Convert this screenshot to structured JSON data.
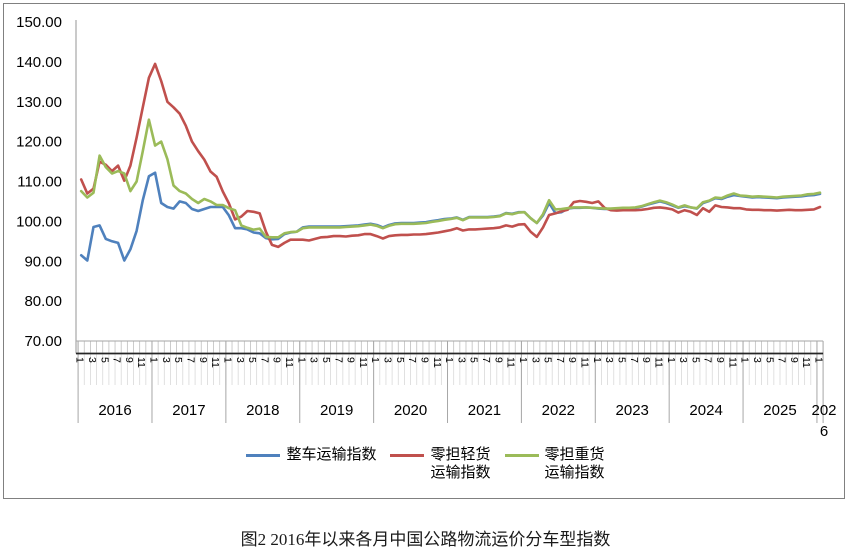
{
  "caption": "图2 2016年以来各月中国公路物流运价分车型指数",
  "legend": {
    "items": [
      {
        "id": "ftl",
        "lines": [
          "整车运输指数"
        ],
        "color": "#4F81BD"
      },
      {
        "id": "ltl-light",
        "lines": [
          "零担轻货",
          "运输指数"
        ],
        "color": "#C0504D"
      },
      {
        "id": "ltl-heavy",
        "lines": [
          "零担重货",
          "运输指数"
        ],
        "color": "#9BBB59"
      }
    ]
  },
  "chart_data": {
    "type": "line",
    "title": "",
    "xlabel": "",
    "ylabel": "",
    "ylim": [
      70,
      150
    ],
    "y_tick_step": 10,
    "grid": false,
    "legend_position": "bottom",
    "y_ticks": [
      "150.00",
      "140.00",
      "130.00",
      "120.00",
      "110.00",
      "100.00",
      "90.00",
      "80.00",
      "70.00"
    ],
    "x_years": [
      "2016",
      "2017",
      "2018",
      "2019",
      "2020",
      "2021",
      "2022",
      "2023",
      "2024",
      "2025",
      "2026"
    ],
    "x_month_ticks": [
      "1",
      "3",
      "5",
      "7",
      "9",
      "11"
    ],
    "x_start": "2016-01",
    "x_end": "2026-01",
    "series": [
      {
        "name": "整车运输指数",
        "color": "#4F81BD",
        "values": [
          91.5,
          90.2,
          98.6,
          99.0,
          95.6,
          95.0,
          94.6,
          90.2,
          93.0,
          97.6,
          105.2,
          111.3,
          112.2,
          104.6,
          103.6,
          103.2,
          105.0,
          104.6,
          103.1,
          102.6,
          103.1,
          103.6,
          103.6,
          103.6,
          101.5,
          98.3,
          98.3,
          98.0,
          97.2,
          97.0,
          95.8,
          95.5,
          95.6,
          96.8,
          97.2,
          97.4,
          98.5,
          98.7,
          98.7,
          98.7,
          98.7,
          98.7,
          98.7,
          98.8,
          98.9,
          99.0,
          99.2,
          99.4,
          99.1,
          98.5,
          99.1,
          99.5,
          99.6,
          99.6,
          99.6,
          99.7,
          99.8,
          100.1,
          100.3,
          100.6,
          100.7,
          101.0,
          100.4,
          101.1,
          101.1,
          101.1,
          101.1,
          101.2,
          101.4,
          102.1,
          101.9,
          102.3,
          102.3,
          100.8,
          99.6,
          101.5,
          104.6,
          102.1,
          102.3,
          103.2,
          103.4,
          103.4,
          103.5,
          103.4,
          103.2,
          103.1,
          103.1,
          103.2,
          103.3,
          103.3,
          103.4,
          103.7,
          104.2,
          104.6,
          105.0,
          104.6,
          104.0,
          103.4,
          103.8,
          103.5,
          103.2,
          104.6,
          105.1,
          105.8,
          105.6,
          106.2,
          106.6,
          106.4,
          106.2,
          106.0,
          106.1,
          106.0,
          105.9,
          105.8,
          106.0,
          106.1,
          106.2,
          106.3,
          106.5,
          106.6,
          106.9
        ]
      },
      {
        "name": "零担轻货运输指数",
        "color": "#C0504D",
        "values": [
          110.5,
          107.0,
          108.2,
          115.0,
          114.2,
          112.6,
          114.0,
          110.2,
          114.0,
          121.0,
          128.5,
          136.0,
          139.5,
          135.2,
          130.0,
          128.6,
          127.0,
          124.0,
          120.0,
          117.6,
          115.5,
          112.5,
          111.2,
          107.5,
          104.5,
          100.5,
          101.2,
          102.6,
          102.4,
          102.0,
          97.4,
          94.1,
          93.6,
          94.6,
          95.4,
          95.4,
          95.4,
          95.2,
          95.6,
          96.0,
          96.1,
          96.3,
          96.3,
          96.2,
          96.4,
          96.5,
          96.8,
          96.8,
          96.3,
          95.7,
          96.3,
          96.5,
          96.6,
          96.6,
          96.7,
          96.7,
          96.8,
          97.0,
          97.2,
          97.5,
          97.8,
          98.3,
          97.7,
          98.0,
          98.0,
          98.1,
          98.2,
          98.3,
          98.5,
          99.0,
          98.7,
          99.2,
          99.3,
          97.4,
          96.1,
          98.5,
          101.6,
          102.0,
          102.5,
          102.9,
          104.8,
          105.1,
          104.9,
          104.6,
          105.0,
          103.4,
          102.8,
          102.7,
          102.8,
          102.8,
          102.8,
          102.9,
          103.1,
          103.4,
          103.5,
          103.3,
          103.0,
          102.2,
          102.8,
          102.4,
          101.6,
          103.3,
          102.4,
          104.0,
          103.6,
          103.5,
          103.3,
          103.3,
          103.0,
          102.9,
          102.9,
          102.8,
          102.8,
          102.7,
          102.8,
          102.9,
          102.8,
          102.8,
          102.9,
          103.0,
          103.6
        ]
      },
      {
        "name": "零担重货运输指数",
        "color": "#9BBB59",
        "values": [
          107.6,
          106.0,
          107.2,
          116.5,
          113.6,
          112.0,
          112.6,
          112.0,
          107.6,
          110.0,
          117.5,
          125.5,
          119.0,
          120.0,
          115.6,
          109.0,
          107.6,
          107.0,
          105.6,
          104.6,
          105.6,
          105.0,
          104.1,
          104.1,
          103.3,
          102.8,
          99.0,
          98.4,
          97.9,
          98.2,
          96.1,
          96.0,
          96.0,
          97.0,
          97.3,
          97.4,
          98.3,
          98.5,
          98.5,
          98.5,
          98.5,
          98.5,
          98.5,
          98.6,
          98.7,
          98.8,
          99.0,
          99.2,
          98.9,
          98.3,
          98.9,
          99.3,
          99.4,
          99.4,
          99.4,
          99.5,
          99.6,
          99.9,
          100.1,
          100.4,
          100.6,
          100.9,
          100.3,
          101.0,
          101.0,
          101.0,
          101.0,
          101.1,
          101.3,
          102.0,
          101.8,
          102.2,
          102.3,
          100.8,
          99.6,
          101.8,
          105.3,
          103.0,
          103.1,
          103.3,
          103.5,
          103.5,
          103.5,
          103.4,
          103.3,
          103.2,
          103.2,
          103.3,
          103.4,
          103.4,
          103.5,
          103.8,
          104.3,
          104.8,
          105.2,
          104.8,
          104.2,
          103.5,
          104.0,
          103.5,
          103.3,
          104.8,
          105.2,
          106.0,
          105.8,
          106.5,
          107.0,
          106.5,
          106.4,
          106.2,
          106.3,
          106.2,
          106.1,
          106.0,
          106.2,
          106.3,
          106.4,
          106.5,
          106.8,
          106.9,
          107.2
        ]
      }
    ]
  },
  "colors": {
    "frame_border": "#808080",
    "axis_light": "#A6A6A6",
    "axis_dark": "#262626",
    "tick_minor": "#BFBFBF",
    "tick_faint": "#D9D9D9",
    "text": "#000000"
  }
}
